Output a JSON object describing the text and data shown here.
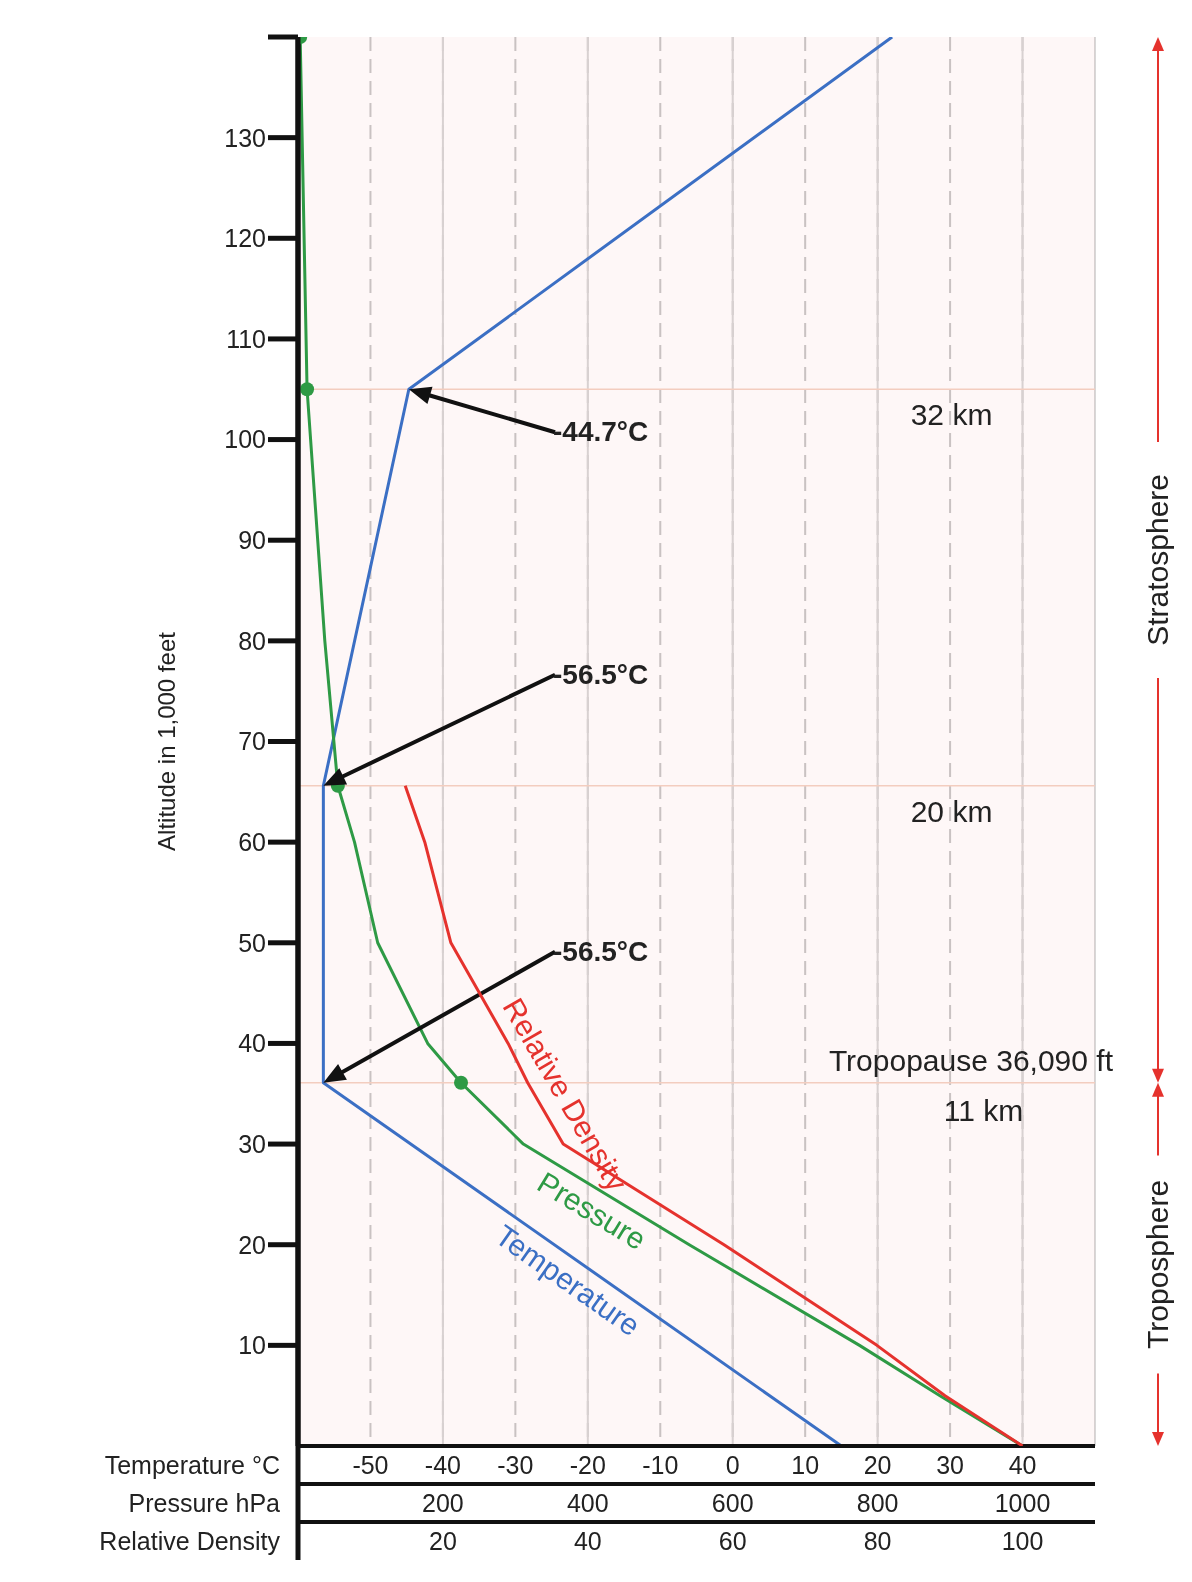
{
  "chart_data": [
    {
      "type": "line",
      "ylabel": "Altitude in 1,000 feet",
      "xlabel": "Temperature °C",
      "x2label": "Pressure  hPa",
      "xlim": [
        -60,
        50
      ],
      "xticks": [
        -50,
        -40,
        -30,
        -20,
        -10,
        0,
        10,
        20,
        30,
        40
      ],
      "x2lim": [
        0,
        1100
      ],
      "x2ticks": [
        200,
        400,
        600,
        800,
        1000
      ],
      "ylim": [
        0,
        140
      ],
      "yticks": [
        10,
        20,
        30,
        40,
        50,
        60,
        70,
        80,
        90,
        100,
        110,
        120,
        130,
        {
          "value": 140,
          "label": null
        }
      ],
      "grid": "x",
      "series": [
        {
          "name": "Temperature",
          "color": "#3b6fc4",
          "x": [
            15,
            -56.5,
            -56.5,
            -44.7,
            22
          ],
          "values": [
            0,
            36.09,
            65.6,
            105,
            140
          ]
        },
        {
          "name": "Pressure",
          "color": "#2e9a45",
          "axis": "x2",
          "x": [
            1000,
            886,
            775,
            540,
            311,
            225,
            179,
            110,
            78,
            55,
            37,
            12.5,
            3
          ],
          "values": [
            0,
            5,
            10,
            20,
            30,
            36.09,
            40,
            50,
            60,
            65.6,
            80,
            105,
            140
          ]
        },
        {
          "type": "scatter",
          "color": "#2e9a45",
          "axis": "x2",
          "x": [
            225,
            55,
            12.5,
            3
          ],
          "values": [
            36.09,
            65.6,
            105,
            140
          ]
        }
      ],
      "ref_lines": [
        {
          "axis": "y",
          "value": 105,
          "label": "32 km",
          "color": "#f3cdbf"
        },
        {
          "axis": "y",
          "value": 65.6,
          "label": "20 km",
          "color": "#f3cdbf"
        },
        {
          "axis": "y",
          "value": 36.09,
          "label": "Tropopause 36,090 ft",
          "color": "#f3cdbf"
        }
      ],
      "bands": [
        {
          "axis": "y",
          "from": 36.09,
          "to": 140,
          "label": "Stratosphere",
          "color": "#e5322d"
        },
        {
          "axis": "y",
          "from": 0,
          "to": 36.09,
          "label": "Troposphere",
          "color": "#e5322d"
        }
      ],
      "annotations": [
        "-44.7°C",
        "-56.5°C",
        "-56.5°C",
        "11 km"
      ]
    },
    {
      "type": "line",
      "xlabel": "Relative Density",
      "xlim": [
        0,
        110
      ],
      "xticks": [
        20,
        40,
        60,
        80,
        100
      ],
      "ylim": [
        0,
        140
      ],
      "tick_labels": "x",
      "series": [
        {
          "name": "Relative Density",
          "color": "#e5322d",
          "x": [
            100,
            89.3,
            79.9,
            58.8,
            36.6,
            31.7,
            29,
            21.1,
            17.5,
            14.8
          ],
          "values": [
            0,
            5,
            10,
            20,
            30,
            36.09,
            40,
            50,
            60,
            65.6
          ]
        }
      ]
    }
  ]
}
